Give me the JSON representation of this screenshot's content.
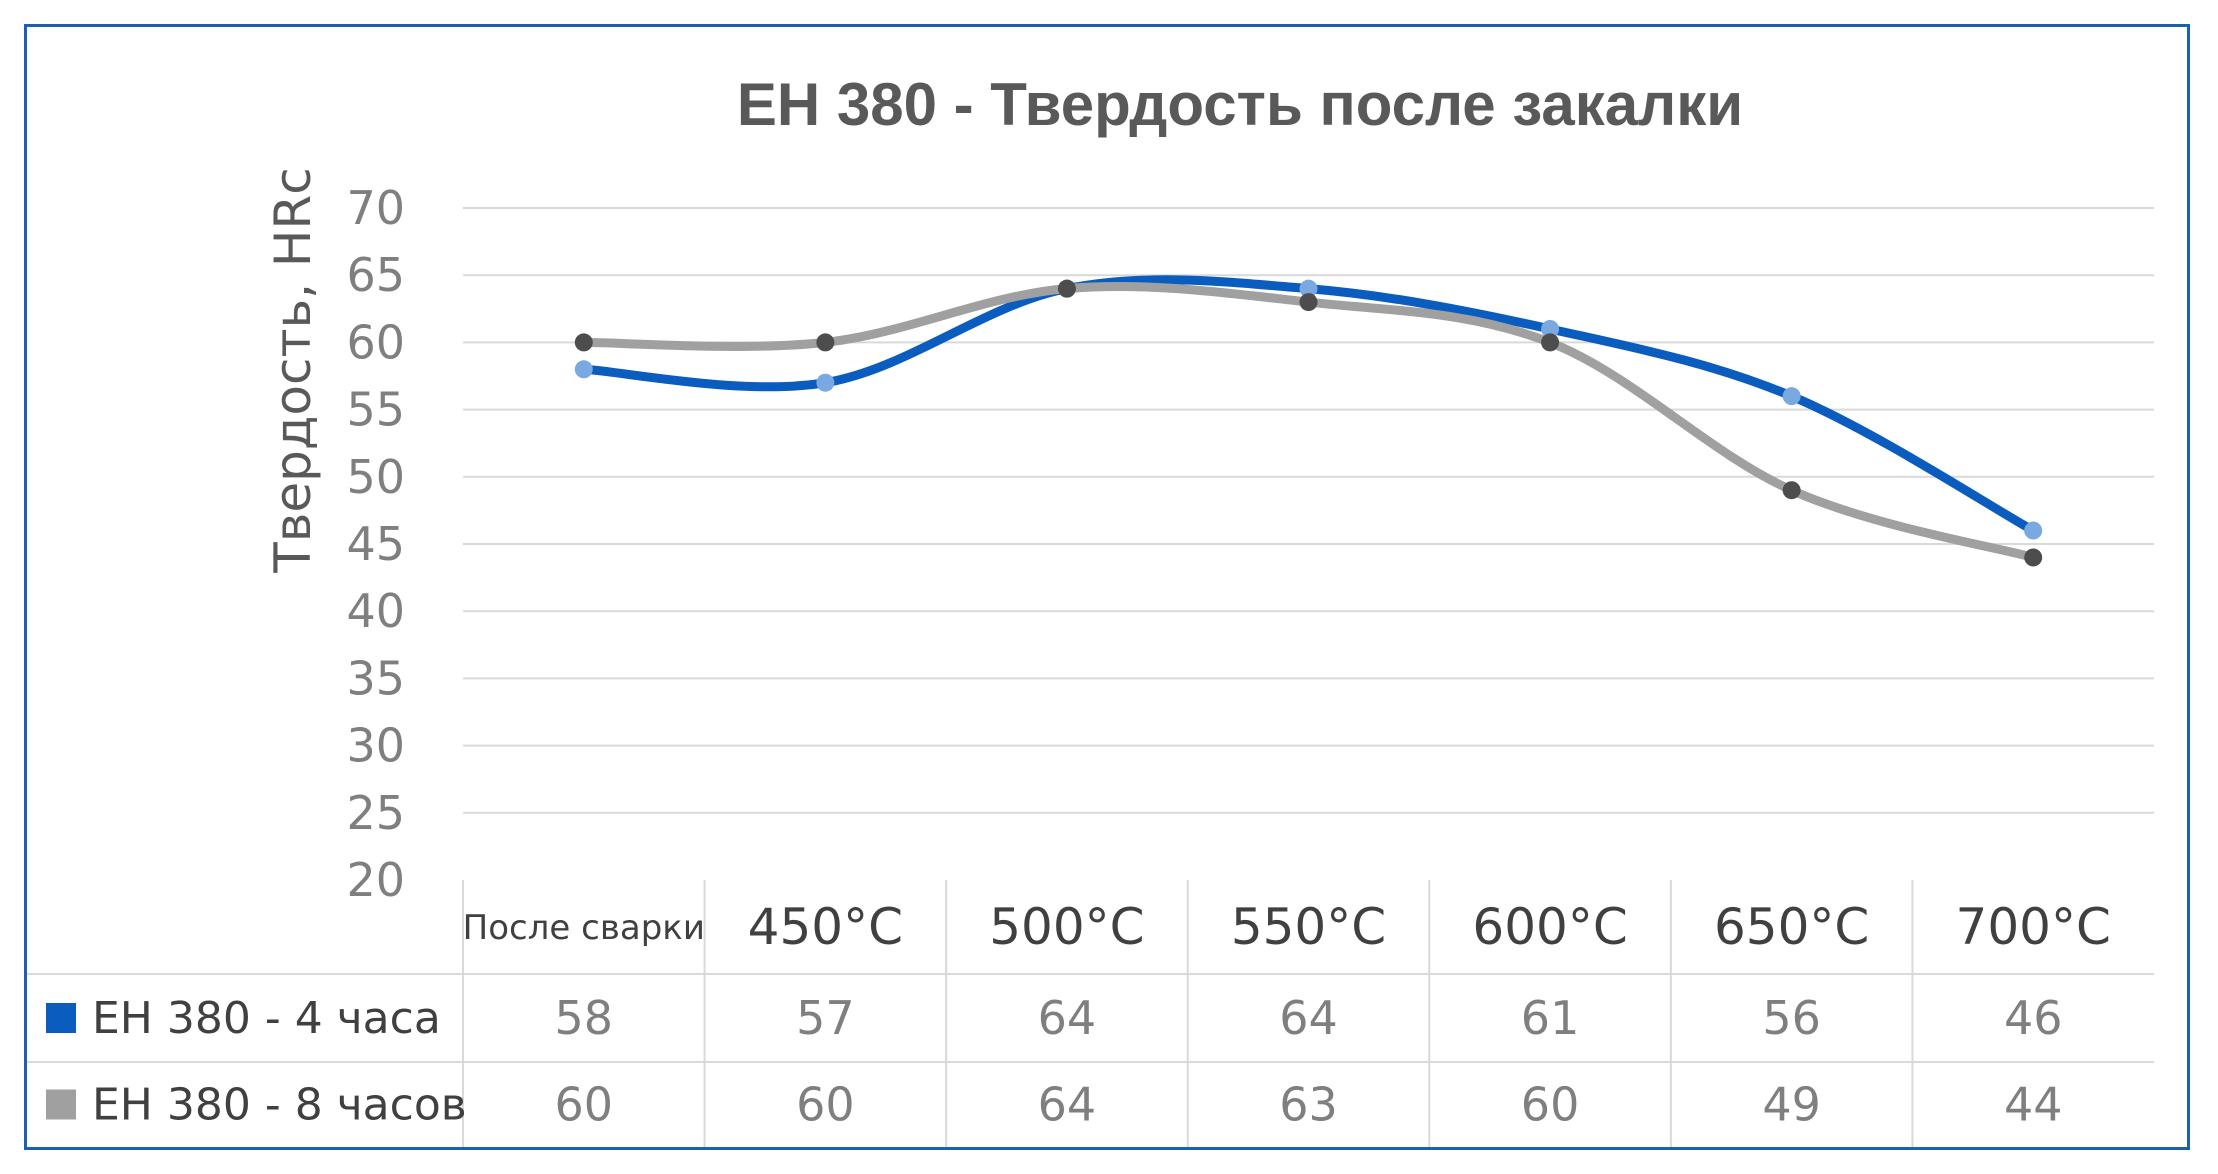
{
  "chart_data": {
    "type": "line",
    "title": "EH 380 - Твердость после закалки",
    "ylabel": "Твердость, HRc",
    "xlabel": "",
    "ylim": [
      20,
      70
    ],
    "y_ticks": [
      "20",
      "25",
      "30",
      "35",
      "40",
      "45",
      "50",
      "55",
      "60",
      "65",
      "70"
    ],
    "categories": [
      "После сварки",
      "450°C",
      "500°C",
      "550°C",
      "600°C",
      "650°C",
      "700°C"
    ],
    "grid": "horizontal",
    "legend": "data-table-left",
    "series": [
      {
        "name": "EH 380 - 4 часа",
        "color": "#0a5cbf",
        "marker_color": "#7aa8e0",
        "values": [
          58,
          57,
          64,
          64,
          61,
          56,
          46
        ]
      },
      {
        "name": "EH 380 - 8 часов",
        "color": "#a0a0a0",
        "marker_color": "#4d4d4d",
        "values": [
          60,
          60,
          64,
          63,
          60,
          49,
          44
        ]
      }
    ]
  }
}
